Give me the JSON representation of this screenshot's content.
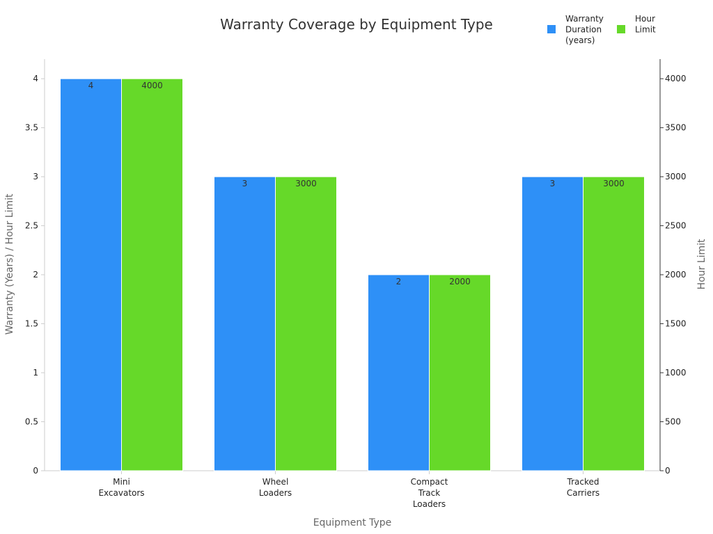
{
  "chart_data": {
    "type": "bar",
    "title": "Warranty Coverage by Equipment Type",
    "xlabel": "Equipment Type",
    "ylabel": "Warranty (Years) / Hour Limit",
    "ylabel_right": "Hour Limit",
    "categories": [
      [
        "Mini",
        "Excavators"
      ],
      [
        "Wheel",
        "Loaders"
      ],
      [
        "Compact",
        "Track",
        "Loaders"
      ],
      [
        "Tracked",
        "Carriers"
      ]
    ],
    "series": [
      {
        "name": [
          "Warranty",
          "Duration",
          "(years)"
        ],
        "axis": "left",
        "color": "#2e90f7",
        "values": [
          4,
          3,
          2,
          3
        ],
        "labels": [
          "4",
          "3",
          "2",
          "3"
        ]
      },
      {
        "name": [
          "Hour",
          "Limit"
        ],
        "axis": "right",
        "color": "#66d929",
        "values": [
          4000,
          3000,
          2000,
          3000
        ],
        "labels": [
          "4000",
          "3000",
          "2000",
          "3000"
        ]
      }
    ],
    "ylim": [
      0,
      4.2
    ],
    "ylim_right": [
      0,
      4200
    ],
    "yticks": [
      "0",
      "0.5",
      "1",
      "1.5",
      "2",
      "2.5",
      "3",
      "3.5",
      "4"
    ],
    "yticks_right": [
      "0",
      "500",
      "1000",
      "1500",
      "2000",
      "2500",
      "3000",
      "3500",
      "4000"
    ],
    "grid": false,
    "legend_position": "top-right"
  }
}
